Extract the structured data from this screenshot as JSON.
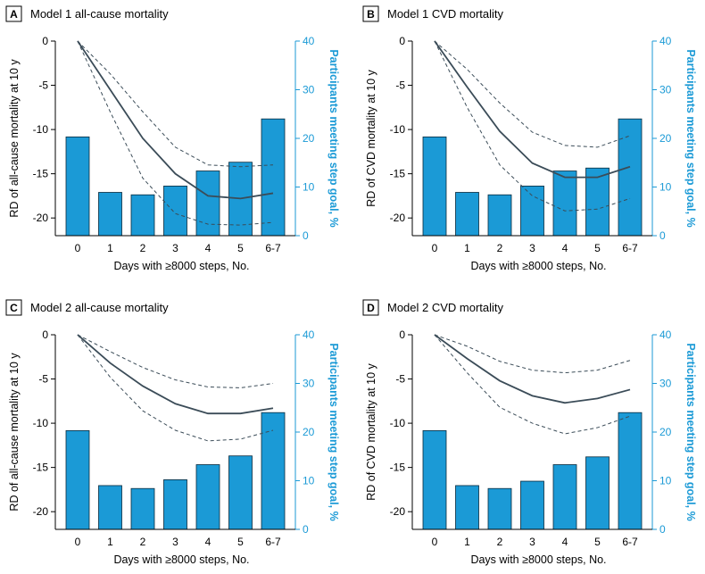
{
  "colors": {
    "bar_fill": "#1b9ad6",
    "bar_stroke": "#0a2a3c",
    "line": "#3b4c58",
    "right_axis": "#1b9ad6",
    "left_axis": "#000000"
  },
  "chart_data": [
    {
      "type": "bar+line",
      "panel": "A",
      "title": "Model 1 all-cause mortality",
      "xlabel": "Days with ≥8000 steps, No.",
      "ylabel": "RD of all-cause mortality at 10 y",
      "y2label": "Participants meeting step goal, %",
      "categories": [
        "0",
        "1",
        "2",
        "3",
        "4",
        "5",
        "6-7"
      ],
      "ylim": [
        -22,
        0
      ],
      "yticks": [
        "0",
        "-5",
        "-10",
        "-15",
        "-20"
      ],
      "y2lim": [
        0,
        40
      ],
      "y2ticks": [
        "0",
        "10",
        "20",
        "30",
        "40"
      ],
      "bars": [
        20.3,
        8.9,
        8.4,
        10.2,
        13.3,
        15.1,
        24.0
      ],
      "estimate": [
        0,
        -5.5,
        -11,
        -15,
        -17.5,
        -17.8,
        -17.2
      ],
      "ci_lower": [
        0,
        -8,
        -15.5,
        -19.5,
        -20.7,
        -20.8,
        -20.5
      ],
      "ci_upper": [
        0,
        -3.7,
        -8.0,
        -12.0,
        -14.0,
        -14.2,
        -14.0
      ]
    },
    {
      "type": "bar+line",
      "panel": "B",
      "title": "Model 1 CVD mortality",
      "xlabel": "Days with ≥8000 steps, No.",
      "ylabel": "RD of CVD mortality at 10 y",
      "y2label": "Participants meeting step goal, %",
      "categories": [
        "0",
        "1",
        "2",
        "3",
        "4",
        "5",
        "6-7"
      ],
      "ylim": [
        -22,
        0
      ],
      "yticks": [
        "0",
        "-5",
        "-10",
        "-15",
        "-20"
      ],
      "y2lim": [
        0,
        40
      ],
      "y2ticks": [
        "0",
        "10",
        "20",
        "30",
        "40"
      ],
      "bars": [
        20.3,
        8.9,
        8.4,
        10.2,
        13.3,
        13.9,
        24.0
      ],
      "estimate": [
        0,
        -5.2,
        -10.2,
        -13.8,
        -15.4,
        -15.4,
        -14.2
      ],
      "ci_lower": [
        0,
        -7.5,
        -14,
        -17.5,
        -19.2,
        -19.0,
        -17.8
      ],
      "ci_upper": [
        0,
        -3.2,
        -7.0,
        -10.3,
        -11.8,
        -12.0,
        -10.7
      ]
    },
    {
      "type": "bar+line",
      "panel": "C",
      "title": "Model 2 all-cause mortality",
      "xlabel": "Days with ≥8000 steps, No.",
      "ylabel": "RD of all-cause mortality at 10 y",
      "y2label": "Participants meeting step goal, %",
      "categories": [
        "0",
        "1",
        "2",
        "3",
        "4",
        "5",
        "6-7"
      ],
      "ylim": [
        -22,
        0
      ],
      "yticks": [
        "0",
        "-5",
        "-10",
        "-15",
        "-20"
      ],
      "y2lim": [
        0,
        40
      ],
      "y2ticks": [
        "0",
        "10",
        "20",
        "30",
        "40"
      ],
      "bars": [
        20.3,
        9.0,
        8.4,
        10.2,
        13.3,
        15.1,
        24.0
      ],
      "estimate": [
        0,
        -3.2,
        -5.8,
        -7.8,
        -8.9,
        -8.9,
        -8.3
      ],
      "ci_lower": [
        0,
        -4.8,
        -8.6,
        -10.8,
        -12.0,
        -11.8,
        -10.8
      ],
      "ci_upper": [
        0,
        -1.9,
        -3.7,
        -5.1,
        -5.9,
        -6.0,
        -5.5
      ]
    },
    {
      "type": "bar+line",
      "panel": "D",
      "title": "Model 2 CVD mortality",
      "xlabel": "Days with ≥8000 steps, No.",
      "ylabel": "RD of CVD mortality at 10 y",
      "y2label": "Participants meeting step goal, %",
      "categories": [
        "0",
        "1",
        "2",
        "3",
        "4",
        "5",
        "6-7"
      ],
      "ylim": [
        -22,
        0
      ],
      "yticks": [
        "0",
        "-5",
        "-10",
        "-15",
        "-20"
      ],
      "y2lim": [
        0,
        40
      ],
      "y2ticks": [
        "0",
        "10",
        "20",
        "30",
        "40"
      ],
      "bars": [
        20.3,
        9.0,
        8.4,
        9.9,
        13.3,
        14.9,
        24.0
      ],
      "estimate": [
        0,
        -2.7,
        -5.2,
        -6.9,
        -7.7,
        -7.2,
        -6.2
      ],
      "ci_lower": [
        0,
        -4.3,
        -8.2,
        -10.0,
        -11.2,
        -10.5,
        -9.2
      ],
      "ci_upper": [
        0,
        -1.3,
        -3.0,
        -4.0,
        -4.3,
        -4.0,
        -2.9
      ]
    }
  ]
}
